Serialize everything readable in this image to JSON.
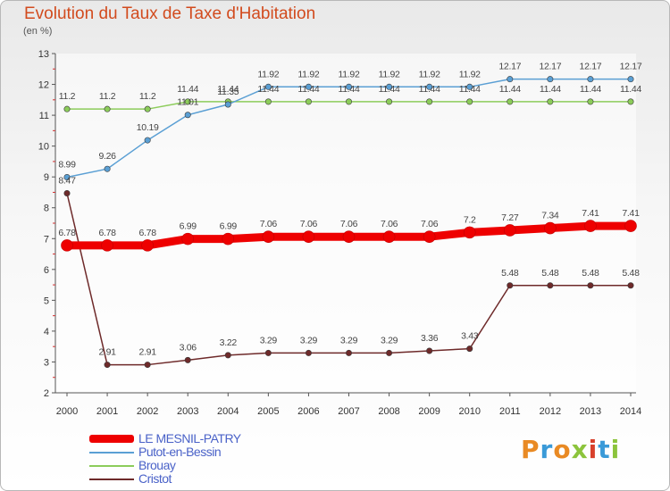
{
  "title": "Evolution du Taux de Taxe d'Habitation",
  "subtitle": "(en %)",
  "logo_text": "Proxiti",
  "colors": {
    "title": "#d24b1e",
    "axis": "#555555",
    "legend_text": "#4a62c8"
  },
  "chart_data": {
    "type": "line",
    "x": [
      2000,
      2001,
      2002,
      2003,
      2004,
      2005,
      2006,
      2007,
      2008,
      2009,
      2010,
      2011,
      2012,
      2013,
      2014
    ],
    "ylim": [
      2,
      13
    ],
    "yticks": [
      2,
      3,
      4,
      5,
      6,
      7,
      8,
      9,
      10,
      11,
      12,
      13
    ],
    "grid": false,
    "legend_position": "bottom-left",
    "series": [
      {
        "name": "LE MESNIL-PATRY",
        "color": "#ee0000",
        "values": [
          6.78,
          6.78,
          6.78,
          6.99,
          6.99,
          7.06,
          7.06,
          7.06,
          7.06,
          7.06,
          7.2,
          7.27,
          7.34,
          7.41,
          7.41
        ],
        "labels": [
          "6.78",
          "6.78",
          "6.78",
          "6.99",
          "6.99",
          "7.06",
          "7.06",
          "7.06",
          "7.06",
          "7.06",
          "7.2",
          "7.27",
          "7.34",
          "7.41",
          "7.41"
        ]
      },
      {
        "name": "Putot-en-Bessin",
        "color": "#5a9fd4",
        "values": [
          8.99,
          9.26,
          10.19,
          11.01,
          11.35,
          11.92,
          11.92,
          11.92,
          11.92,
          11.92,
          11.92,
          12.17,
          12.17,
          12.17,
          12.17
        ],
        "labels": [
          "8.99",
          "9.26",
          "10.19",
          "11.01",
          "11.35",
          "11.92",
          "11.92",
          "11.92",
          "11.92",
          "11.92",
          "11.92",
          "12.17",
          "12.17",
          "12.17",
          "12.17"
        ]
      },
      {
        "name": "Brouay",
        "color": "#8ccc5a",
        "values": [
          11.2,
          11.2,
          11.2,
          11.44,
          11.44,
          11.44,
          11.44,
          11.44,
          11.44,
          11.44,
          11.44,
          11.44,
          11.44,
          11.44,
          11.44
        ],
        "labels": [
          "11.2",
          "11.2",
          "11.2",
          "11.44",
          "11.44",
          "11.44",
          "11.44",
          "11.44",
          "11.44",
          "11.44",
          "11.44",
          "11.44",
          "11.44",
          "11.44",
          "11.44"
        ]
      },
      {
        "name": "Cristot",
        "color": "#6e2a2a",
        "values": [
          8.47,
          2.91,
          2.91,
          3.06,
          3.22,
          3.29,
          3.29,
          3.29,
          3.29,
          3.36,
          3.43,
          5.48,
          5.48,
          5.48,
          5.48
        ],
        "labels": [
          "8.47",
          "2.91",
          "2.91",
          "3.06",
          "3.22",
          "3.29",
          "3.29",
          "3.29",
          "3.29",
          "3.36",
          "3.43",
          "5.48",
          "5.48",
          "5.48",
          "5.48"
        ]
      }
    ]
  }
}
